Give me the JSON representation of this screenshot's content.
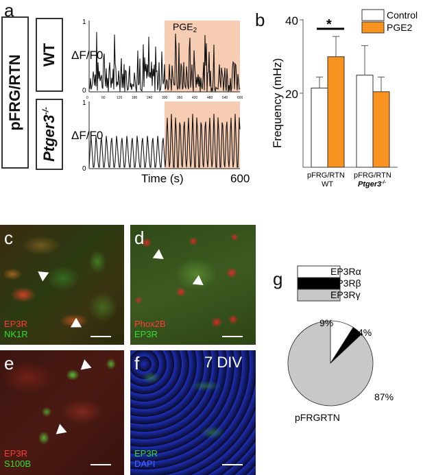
{
  "panels": {
    "a": {
      "letter": "a",
      "row_label": "pFRG/RTN",
      "wt_label": "WT",
      "ko_label": "Ptger3",
      "ko_sup": "-/-",
      "ylabel": "ΔF/F0",
      "xlabel": "Time (s)",
      "xmax_label": "600",
      "treatment_label": "PGE",
      "treatment_sub": "2",
      "y_ticks": [
        "1",
        "0"
      ],
      "x_ticks": [
        "0",
        "60",
        "120",
        "180",
        "240",
        "300",
        "360",
        "420",
        "480",
        "540",
        "600"
      ],
      "shade_color": "#f6cdb2"
    },
    "b": {
      "letter": "b",
      "ylabel": "Frequency (mHz)",
      "y_ticks": [
        "40",
        "20"
      ],
      "significance": "*",
      "legend": [
        "Control",
        "PGE2"
      ],
      "group1_line1": "pFRG/RTN",
      "group1_line2": "WT",
      "group2_line1": "pFRG/RTN",
      "group2_line2": "Ptger3",
      "group2_sup": "-/-"
    },
    "c": {
      "letter": "c",
      "stain1": "EP3R",
      "stain2": "NK1R"
    },
    "d": {
      "letter": "d",
      "stain1": "Phox2B",
      "stain2": "EP3R"
    },
    "e": {
      "letter": "e",
      "stain1": "EP3R",
      "stain2": "S100B"
    },
    "f": {
      "letter": "f",
      "stain1": "EP3R",
      "stain2": "DAPI",
      "note": "7 DIV"
    },
    "g": {
      "letter": "g",
      "caption": "pFRGRTN",
      "legend": [
        "EP3Rα",
        "EP3Rβ",
        "EP3Rγ"
      ],
      "labels": [
        "9%",
        "4%",
        "87%"
      ]
    }
  },
  "colors": {
    "control": "#ffffff",
    "pge2": "#f7931e",
    "red_stain": "#ff3333",
    "green_stain": "#33cc33",
    "blue_stain": "#3355ff",
    "pie_alpha": "#ffffff",
    "pie_beta": "#000000",
    "pie_gamma": "#c8c8c8"
  },
  "chart_data": [
    {
      "type": "line",
      "panel": "a-WT",
      "x_range": [
        0,
        600
      ],
      "ylim": [
        0,
        1
      ],
      "xlabel": "Time (s)",
      "ylabel": "ΔF/F0",
      "shaded_interval": [
        300,
        600
      ],
      "shaded_label": "PGE2"
    },
    {
      "type": "line",
      "panel": "a-Ptger3-/-",
      "x_range": [
        0,
        600
      ],
      "ylim": [
        0,
        1
      ],
      "xlabel": "Time (s)",
      "ylabel": "ΔF/F0",
      "shaded_interval": [
        300,
        600
      ],
      "shaded_label": "PGE2"
    },
    {
      "type": "bar",
      "panel": "b",
      "categories": [
        "pFRG/RTN WT",
        "pFRG/RTN Ptger3-/-"
      ],
      "series": [
        {
          "name": "Control",
          "values": [
            21.5,
            25
          ],
          "errors": [
            3,
            8
          ]
        },
        {
          "name": "PGE2",
          "values": [
            30,
            20.5
          ],
          "errors": [
            5.5,
            4
          ]
        }
      ],
      "ylabel": "Frequency (mHz)",
      "ylim": [
        0,
        40
      ]
    },
    {
      "type": "pie",
      "panel": "g",
      "labels": [
        "EP3Rα",
        "EP3Rβ",
        "EP3Rγ"
      ],
      "values": [
        9,
        4,
        87
      ]
    }
  ]
}
